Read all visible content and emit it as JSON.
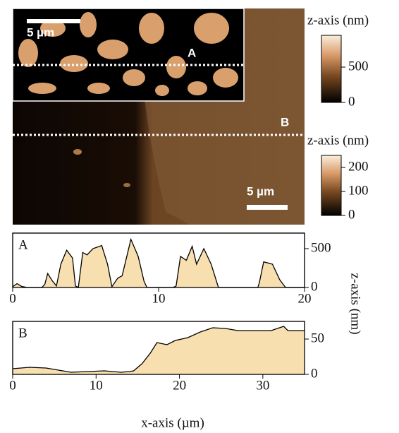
{
  "images": {
    "inset": {
      "label": "A",
      "scale_bar": "5 µm"
    },
    "main": {
      "label": "B",
      "scale_bar": "5 µm"
    }
  },
  "colorbars": [
    {
      "label": "z-axis (nm)",
      "lim": [
        0,
        950
      ],
      "ticks": [
        0,
        500
      ]
    },
    {
      "label": "z-axis (nm)",
      "lim": [
        0,
        250
      ],
      "ticks": [
        0,
        100,
        200
      ]
    }
  ],
  "chart_data": [
    {
      "type": "area",
      "label": "A",
      "color": "#f7dfb0",
      "x": [
        0,
        0.3,
        0.6,
        1,
        2,
        2.2,
        2.4,
        2.7,
        3,
        3.3,
        3.7,
        4.1,
        4.3,
        4.5,
        4.8,
        5.1,
        5.5,
        6.1,
        6.5,
        6.8,
        7.2,
        7.5,
        8.1,
        8.6,
        9,
        9.2,
        10,
        11,
        11.2,
        11.5,
        11.9,
        12.3,
        12.6,
        13.1,
        13.6,
        14.1,
        15,
        16.8,
        16.9,
        17.2,
        17.8,
        18.3,
        18.7,
        19.5,
        20
      ],
      "values": [
        10,
        50,
        15,
        0,
        0,
        40,
        180,
        90,
        20,
        300,
        480,
        380,
        20,
        0,
        450,
        420,
        500,
        540,
        300,
        10,
        120,
        150,
        620,
        400,
        80,
        0,
        0,
        0,
        20,
        400,
        350,
        530,
        300,
        500,
        300,
        0,
        0,
        0,
        60,
        330,
        300,
        100,
        0,
        0,
        0
      ],
      "xlim": [
        0,
        20
      ],
      "xticks": [
        0,
        10,
        20
      ],
      "ylim": [
        0,
        700
      ],
      "yticks": [
        0,
        500
      ],
      "ylabel": "z-axis (nm)"
    },
    {
      "type": "area",
      "label": "B",
      "color": "#f7dfb0",
      "x": [
        0,
        2,
        4,
        5,
        6,
        7,
        9,
        11,
        13,
        14,
        14.5,
        15.5,
        16.5,
        17.3,
        18.5,
        19.5,
        21,
        22.5,
        24,
        25.5,
        27,
        29,
        31,
        32.5,
        33,
        35
      ],
      "values": [
        8,
        10,
        9,
        7,
        5,
        3,
        4,
        5,
        3,
        4,
        5,
        15,
        30,
        45,
        42,
        48,
        52,
        60,
        66,
        65,
        62,
        62,
        62,
        68,
        62,
        62
      ],
      "xlim": [
        0,
        35
      ],
      "xticks": [
        0,
        10,
        20,
        30
      ],
      "ylim": [
        0,
        75
      ],
      "yticks": [
        0,
        50
      ],
      "xlabel": "x-axis (µm)"
    }
  ]
}
